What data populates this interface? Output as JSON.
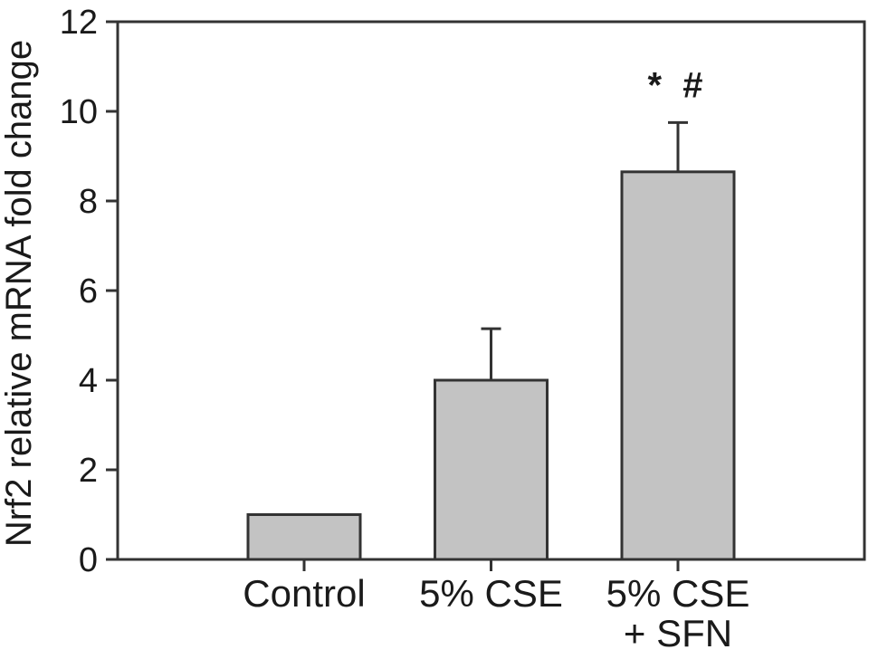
{
  "figure": {
    "background": "#ffffff"
  },
  "chart_data": {
    "type": "bar",
    "title": "",
    "xlabel": "",
    "ylabel": "Nrf2 relative mRNA fold change",
    "ylim": [
      0,
      12
    ],
    "yticks": [
      0,
      2,
      4,
      6,
      8,
      10,
      12
    ],
    "categories": [
      "Control",
      "5% CSE",
      "5% CSE\n+ SFN"
    ],
    "values": [
      1.0,
      4.0,
      8.65
    ],
    "error_plus": [
      0,
      1.15,
      1.1
    ],
    "annotations": [
      {
        "text": "* #",
        "category_index": 2,
        "y": 10.6
      }
    ],
    "grid": false,
    "frame": true,
    "legend_position": "none",
    "colors": {
      "bar_fill": "#c3c3c3",
      "bar_edge": "#333333",
      "axis": "#333333",
      "text": "#1a1a1a",
      "background": "#ffffff"
    }
  }
}
